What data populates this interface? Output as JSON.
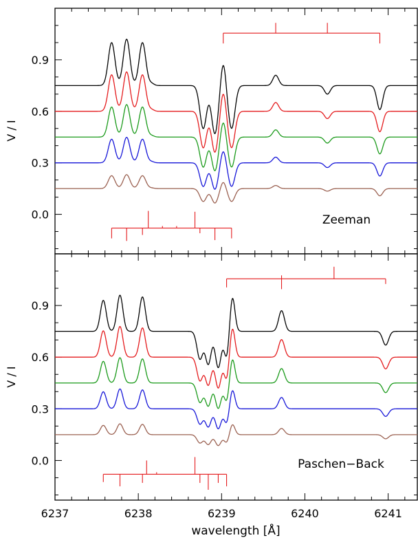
{
  "chart_data": [
    {
      "type": "line",
      "panel_label": "Zeeman",
      "ylabel": "V / I",
      "xlim": [
        6237.0,
        6241.35
      ],
      "ylim": [
        -0.23,
        1.2
      ],
      "yticks": [
        0.0,
        0.3,
        0.6,
        0.9
      ],
      "yticklabels": [
        "0.0",
        "0.3",
        "0.6",
        "0.9"
      ],
      "grid": false,
      "legend": "none",
      "series_offsets": [
        0.75,
        0.6,
        0.45,
        0.3,
        0.15
      ],
      "series_colors": [
        "#000000",
        "#e41a1c",
        "#1a9a1a",
        "#1515d8",
        "#9a6050"
      ],
      "series_scales": [
        1.0,
        0.85,
        0.7,
        0.55,
        0.3
      ],
      "lines": [
        {
          "x": 6237.68,
          "a": 0.25,
          "w": 0.04
        },
        {
          "x": 6237.86,
          "a": 0.27,
          "w": 0.04
        },
        {
          "x": 6238.05,
          "a": 0.25,
          "w": 0.04
        },
        {
          "x": 6238.16,
          "a": 0.012,
          "w": 0.03
        },
        {
          "x": 6238.78,
          "a": -0.25,
          "w": 0.04
        },
        {
          "x": 6238.92,
          "a": -0.28,
          "w": 0.04
        },
        {
          "x": 6239.02,
          "a": 0.14,
          "w": 0.03
        },
        {
          "x": 6239.12,
          "a": -0.25,
          "w": 0.04
        },
        {
          "x": 6239.65,
          "a": 0.06,
          "w": 0.035
        },
        {
          "x": 6240.27,
          "a": -0.05,
          "w": 0.035
        },
        {
          "x": 6240.9,
          "a": -0.14,
          "w": 0.035
        }
      ],
      "upper_pattern": {
        "hbar_y": 1.055,
        "x_start": 6239.02,
        "x_end": 6240.9,
        "up": [
          {
            "x": 6239.65,
            "h": 0.06
          },
          {
            "x": 6240.27,
            "h": 0.06
          }
        ],
        "down": [
          {
            "x": 6239.02,
            "h": 0.06
          },
          {
            "x": 6240.9,
            "h": 0.06
          }
        ]
      },
      "lower_pattern": {
        "hbar_y": -0.08,
        "x_start": 6237.68,
        "x_end": 6239.12,
        "up": [
          {
            "x": 6238.12,
            "h": 0.1
          },
          {
            "x": 6238.29,
            "h": 0.012
          },
          {
            "x": 6238.46,
            "h": 0.012
          },
          {
            "x": 6238.68,
            "h": 0.095
          }
        ],
        "down": [
          {
            "x": 6237.68,
            "h": 0.06
          },
          {
            "x": 6237.86,
            "h": 0.075
          },
          {
            "x": 6238.05,
            "h": 0.04
          },
          {
            "x": 6238.74,
            "h": 0.03
          },
          {
            "x": 6238.92,
            "h": 0.07
          },
          {
            "x": 6239.12,
            "h": 0.06
          }
        ]
      }
    },
    {
      "type": "line",
      "panel_label": "Paschen−Back",
      "ylabel": "V / I",
      "xlabel": "wavelength  [Å]",
      "xlim": [
        6237.0,
        6241.35
      ],
      "ylim": [
        -0.23,
        1.2
      ],
      "xticks": [
        6237,
        6238,
        6239,
        6240,
        6241
      ],
      "xticklabels": [
        "6237",
        "6238",
        "6239",
        "6240",
        "6241"
      ],
      "yticks": [
        0.0,
        0.3,
        0.6,
        0.9
      ],
      "yticklabels": [
        "0.0",
        "0.3",
        "0.6",
        "0.9"
      ],
      "grid": false,
      "legend": "none",
      "series_offsets": [
        0.75,
        0.6,
        0.45,
        0.3,
        0.15
      ],
      "series_colors": [
        "#000000",
        "#e41a1c",
        "#1a9a1a",
        "#1515d8",
        "#9a6050"
      ],
      "series_scales": [
        1.0,
        0.85,
        0.7,
        0.55,
        0.3
      ],
      "lines": [
        {
          "x": 6237.58,
          "a": 0.18,
          "w": 0.035
        },
        {
          "x": 6237.78,
          "a": 0.21,
          "w": 0.035
        },
        {
          "x": 6238.05,
          "a": 0.2,
          "w": 0.035
        },
        {
          "x": 6238.74,
          "a": -0.16,
          "w": 0.035
        },
        {
          "x": 6238.84,
          "a": -0.19,
          "w": 0.035
        },
        {
          "x": 6238.96,
          "a": -0.21,
          "w": 0.035
        },
        {
          "x": 6239.06,
          "a": -0.15,
          "w": 0.03
        },
        {
          "x": 6239.13,
          "a": 0.2,
          "w": 0.03
        },
        {
          "x": 6239.72,
          "a": 0.12,
          "w": 0.035
        },
        {
          "x": 6240.97,
          "a": -0.08,
          "w": 0.035
        }
      ],
      "upper_pattern": {
        "hbar_y": 1.055,
        "x_start": 6239.06,
        "x_end": 6240.97,
        "up": [
          {
            "x": 6239.72,
            "h": 0.02
          },
          {
            "x": 6240.35,
            "h": 0.07
          }
        ],
        "down": [
          {
            "x": 6239.06,
            "h": 0.05
          },
          {
            "x": 6239.72,
            "h": 0.06
          },
          {
            "x": 6240.97,
            "h": 0.03
          }
        ]
      },
      "lower_pattern": {
        "hbar_y": -0.08,
        "x_start": 6237.58,
        "x_end": 6239.06,
        "up": [
          {
            "x": 6238.1,
            "h": 0.08
          },
          {
            "x": 6238.22,
            "h": 0.012
          },
          {
            "x": 6238.68,
            "h": 0.1
          }
        ],
        "down": [
          {
            "x": 6237.58,
            "h": 0.045
          },
          {
            "x": 6237.78,
            "h": 0.07
          },
          {
            "x": 6238.05,
            "h": 0.05
          },
          {
            "x": 6238.74,
            "h": 0.05
          },
          {
            "x": 6238.84,
            "h": 0.09
          },
          {
            "x": 6238.96,
            "h": 0.05
          },
          {
            "x": 6239.06,
            "h": 0.07
          }
        ]
      }
    }
  ]
}
